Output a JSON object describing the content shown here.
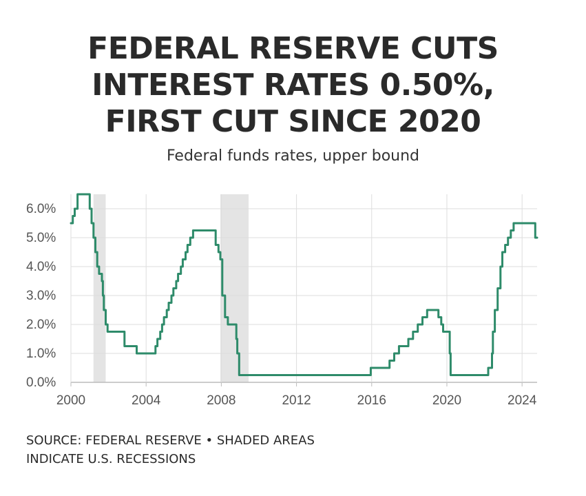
{
  "title_lines": [
    "FEDERAL RESERVE CUTS",
    "INTEREST RATES 0.50%,",
    "FIRST CUT SINCE 2020"
  ],
  "subtitle": "Federal funds rates, upper bound",
  "source_note": "SOURCE: FEDERAL RESERVE • SHADED AREAS INDICATE U.S. RECESSIONS",
  "colors": {
    "line": "#2e8b6a",
    "recession_shade": "#e4e4e4",
    "grid": "#dddddd",
    "axis": "#bbbbbb"
  },
  "chart_data": {
    "type": "line",
    "title": "FEDERAL RESERVE CUTS INTEREST RATES 0.50%, FIRST CUT SINCE 2020",
    "subtitle": "Federal funds rates, upper bound",
    "xlabel": "",
    "ylabel": "",
    "xlim": [
      2000,
      2024.8
    ],
    "ylim": [
      0,
      6.5
    ],
    "x_ticks": [
      2000,
      2004,
      2008,
      2012,
      2016,
      2020,
      2024
    ],
    "x_tick_labels": [
      "2000",
      "2004",
      "2008",
      "2012",
      "2016",
      "2020",
      "2024"
    ],
    "y_ticks": [
      0,
      1,
      2,
      3,
      4,
      5,
      6
    ],
    "y_tick_labels": [
      "0.0%",
      "1.0%",
      "2.0%",
      "3.0%",
      "4.0%",
      "5.0%",
      "6.0%"
    ],
    "grid": true,
    "step": true,
    "recessions": [
      {
        "start": 2001.2,
        "end": 2001.85
      },
      {
        "start": 2007.95,
        "end": 2009.45
      }
    ],
    "series": [
      {
        "values": [
          [
            2000.0,
            5.5
          ],
          [
            2000.1,
            5.75
          ],
          [
            2000.2,
            6.0
          ],
          [
            2000.35,
            6.5
          ],
          [
            2001.0,
            6.0
          ],
          [
            2001.1,
            5.5
          ],
          [
            2001.2,
            5.0
          ],
          [
            2001.3,
            4.5
          ],
          [
            2001.4,
            4.0
          ],
          [
            2001.5,
            3.75
          ],
          [
            2001.65,
            3.5
          ],
          [
            2001.7,
            3.0
          ],
          [
            2001.75,
            2.5
          ],
          [
            2001.85,
            2.0
          ],
          [
            2001.95,
            1.75
          ],
          [
            2002.85,
            1.25
          ],
          [
            2003.5,
            1.0
          ],
          [
            2004.5,
            1.25
          ],
          [
            2004.6,
            1.5
          ],
          [
            2004.75,
            1.75
          ],
          [
            2004.85,
            2.0
          ],
          [
            2004.95,
            2.25
          ],
          [
            2005.1,
            2.5
          ],
          [
            2005.2,
            2.75
          ],
          [
            2005.35,
            3.0
          ],
          [
            2005.45,
            3.25
          ],
          [
            2005.6,
            3.5
          ],
          [
            2005.7,
            3.75
          ],
          [
            2005.85,
            4.0
          ],
          [
            2005.95,
            4.25
          ],
          [
            2006.1,
            4.5
          ],
          [
            2006.2,
            4.75
          ],
          [
            2006.35,
            5.0
          ],
          [
            2006.5,
            5.25
          ],
          [
            2007.7,
            4.75
          ],
          [
            2007.85,
            4.5
          ],
          [
            2007.95,
            4.25
          ],
          [
            2008.05,
            3.0
          ],
          [
            2008.2,
            2.25
          ],
          [
            2008.35,
            2.0
          ],
          [
            2008.8,
            1.5
          ],
          [
            2008.85,
            1.0
          ],
          [
            2008.95,
            0.25
          ],
          [
            2015.95,
            0.5
          ],
          [
            2016.95,
            0.75
          ],
          [
            2017.2,
            1.0
          ],
          [
            2017.45,
            1.25
          ],
          [
            2017.95,
            1.5
          ],
          [
            2018.2,
            1.75
          ],
          [
            2018.45,
            2.0
          ],
          [
            2018.7,
            2.25
          ],
          [
            2018.95,
            2.5
          ],
          [
            2019.55,
            2.25
          ],
          [
            2019.7,
            2.0
          ],
          [
            2019.8,
            1.75
          ],
          [
            2020.15,
            1.0
          ],
          [
            2020.2,
            0.25
          ],
          [
            2022.2,
            0.5
          ],
          [
            2022.4,
            1.0
          ],
          [
            2022.45,
            1.75
          ],
          [
            2022.55,
            2.5
          ],
          [
            2022.7,
            3.25
          ],
          [
            2022.85,
            4.0
          ],
          [
            2022.95,
            4.5
          ],
          [
            2023.1,
            4.75
          ],
          [
            2023.25,
            5.0
          ],
          [
            2023.4,
            5.25
          ],
          [
            2023.55,
            5.5
          ],
          [
            2024.7,
            5.0
          ],
          [
            2024.8,
            5.0
          ]
        ]
      }
    ]
  }
}
